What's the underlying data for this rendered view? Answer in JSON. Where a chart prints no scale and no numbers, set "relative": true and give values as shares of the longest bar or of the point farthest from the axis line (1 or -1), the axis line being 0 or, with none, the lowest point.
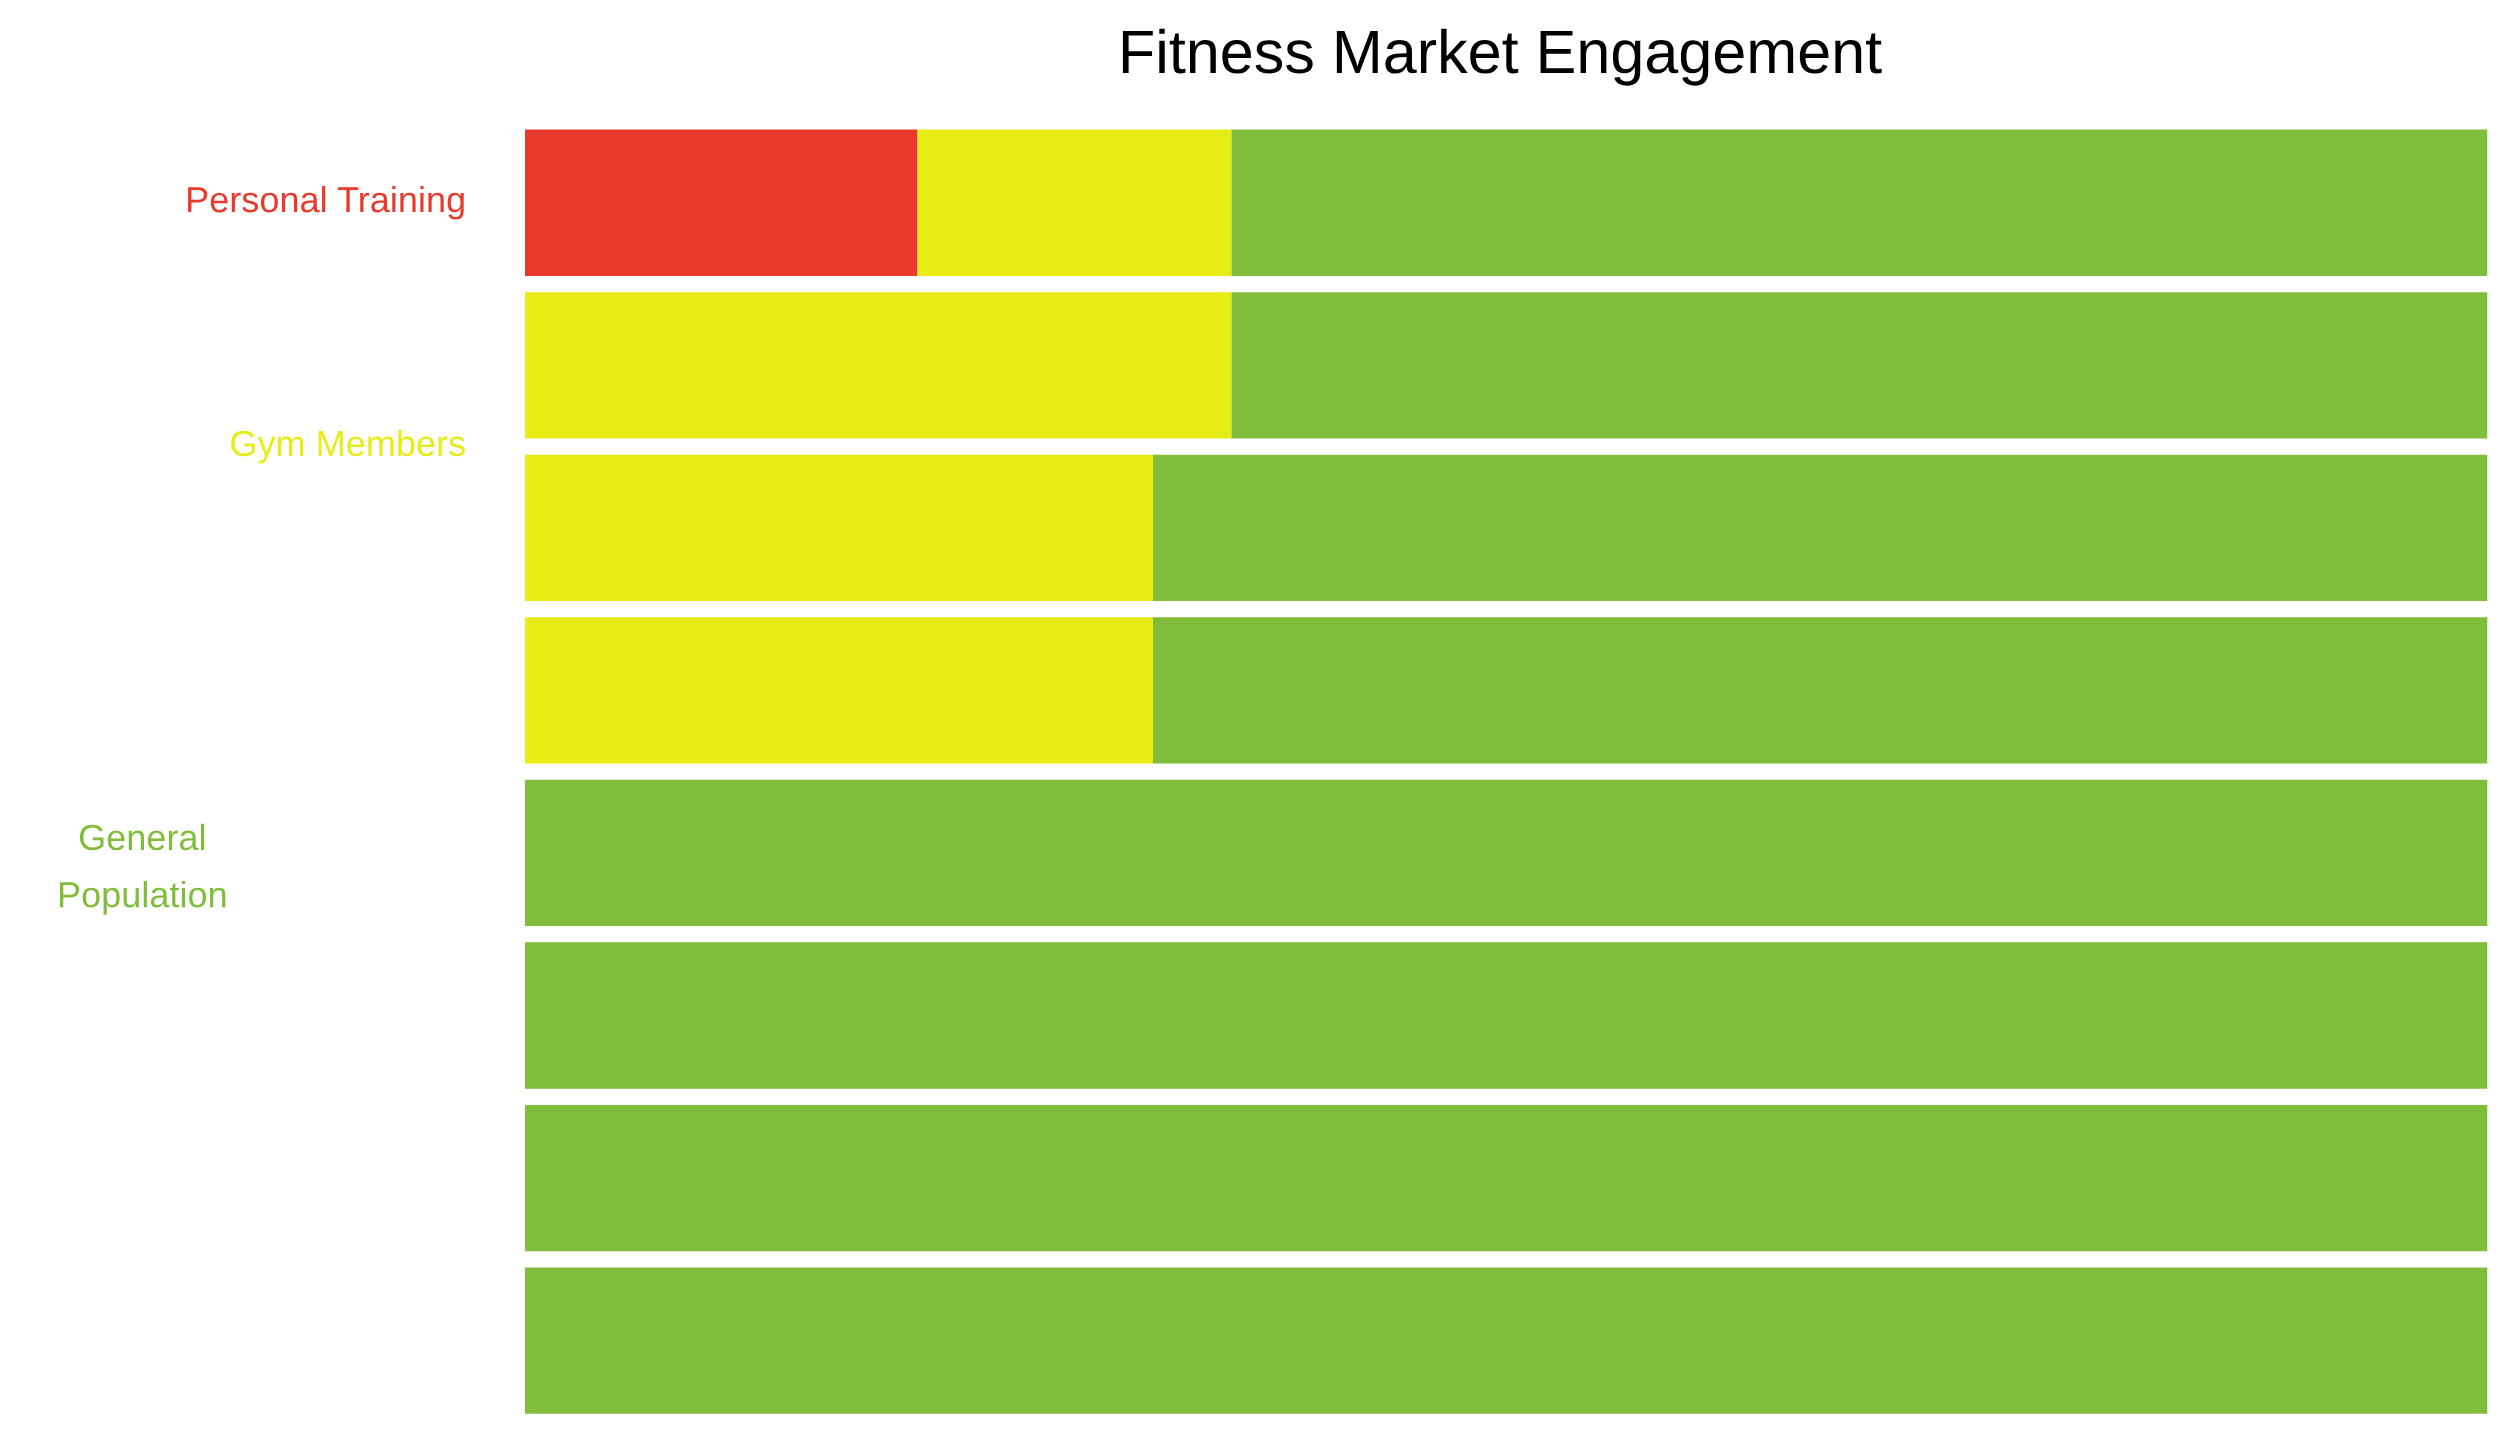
{
  "chart_data": {
    "type": "bar",
    "title": "Fitness Market Engagement",
    "categories": [
      null,
      null,
      null,
      null,
      null,
      null,
      null,
      null
    ],
    "stacked": true,
    "orientation": "horizontal",
    "relative": true,
    "series": [
      {
        "name": "Personal Training",
        "color": "#e8392a",
        "values": [
          0.2,
          0,
          0,
          0,
          0,
          0,
          0,
          0
        ]
      },
      {
        "name": "Gym Members",
        "color": "#e6ec14",
        "values": [
          0.16,
          0.36,
          0.32,
          0.32,
          0,
          0,
          0,
          0
        ]
      },
      {
        "name": "General Population",
        "color": "#80bd3a",
        "values": [
          0.64,
          0.64,
          0.68,
          0.68,
          1,
          1,
          1,
          1
        ]
      }
    ]
  }
}
